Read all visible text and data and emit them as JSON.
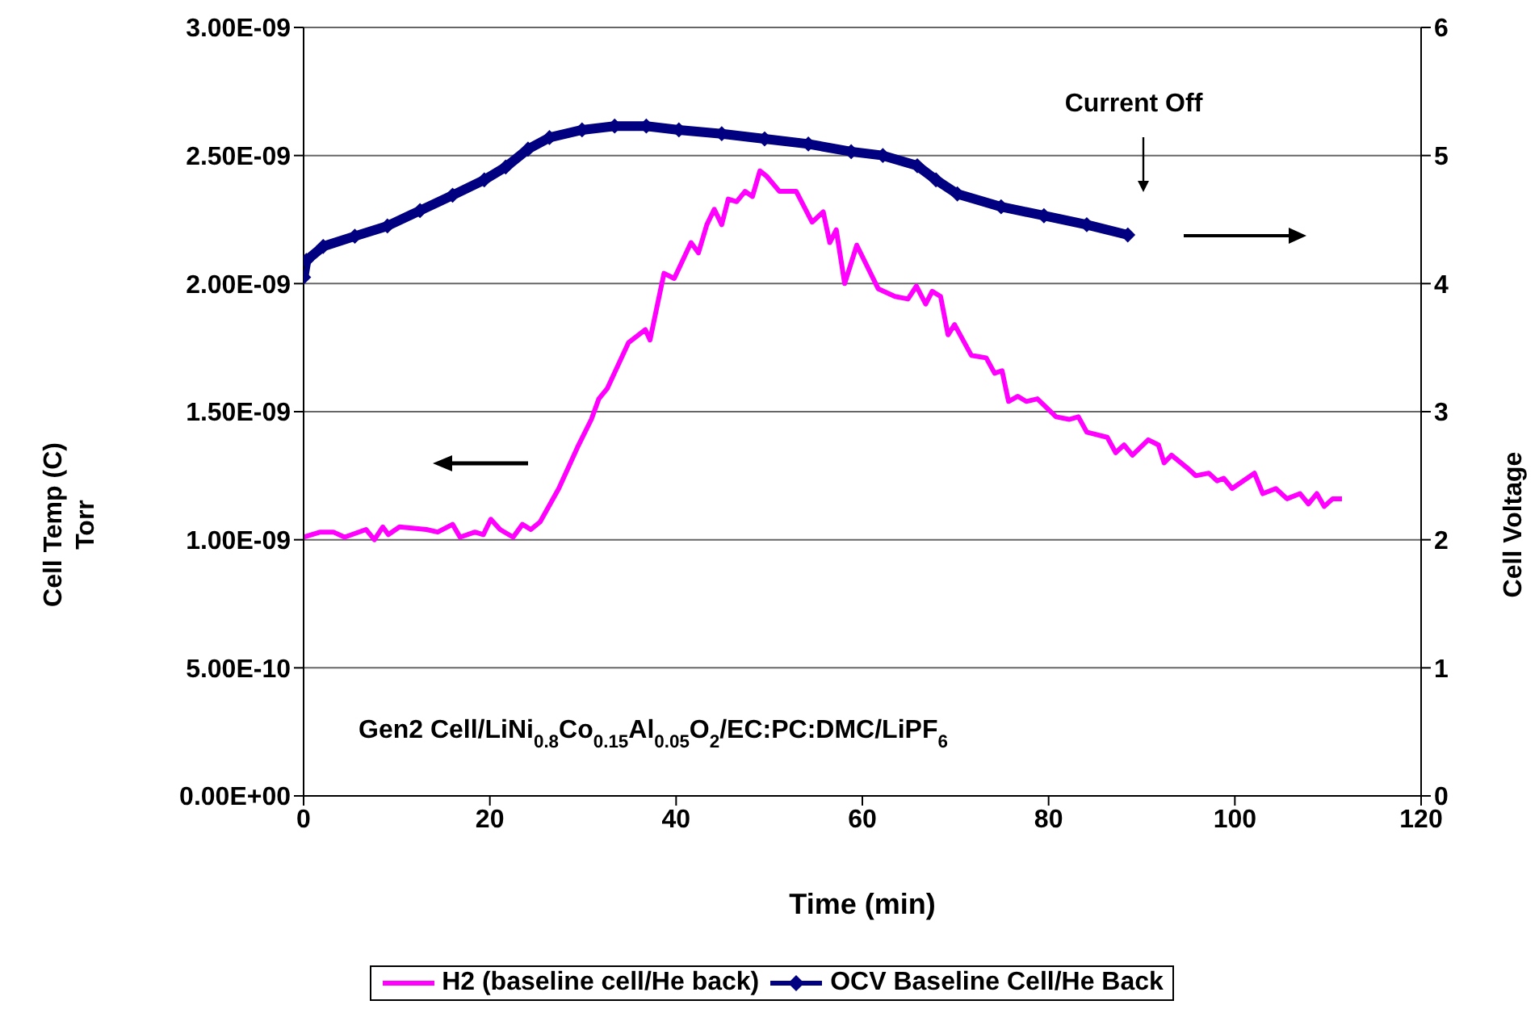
{
  "chart_data": {
    "type": "line",
    "xlabel": "Time (min)",
    "ylabel": "Cell Temp (C)\nTorr",
    "y2label": "Cell Voltage",
    "xlim": [
      0,
      120
    ],
    "xticks": [
      0,
      20,
      40,
      60,
      80,
      100,
      120
    ],
    "ylim": [
      0,
      3e-09
    ],
    "yticks": [
      {
        "value": 0,
        "label": "0.00E+00"
      },
      {
        "value": 5e-10,
        "label": "5.00E-10"
      },
      {
        "value": 1e-09,
        "label": "1.00E-09"
      },
      {
        "value": 1.5e-09,
        "label": "1.50E-09"
      },
      {
        "value": 2e-09,
        "label": "2.00E-09"
      },
      {
        "value": 2.5e-09,
        "label": "2.50E-09"
      },
      {
        "value": 3e-09,
        "label": "3.00E-09"
      }
    ],
    "y2lim": [
      0,
      6
    ],
    "y2ticks": [
      0,
      1,
      2,
      3,
      4,
      5,
      6
    ],
    "grid": "y",
    "legend": "bottom",
    "line_style": "solid",
    "annotations": [
      "Current Off",
      "Gen2 Cell/LiNi$_{0.8}$Co$_{0.15}$Al$_{0.05}$O$_{2}$/EC:PC:DMC/LiPF$_{6}$"
    ],
    "series": [
      {
        "name": "H2 (baseline cell/He back)",
        "color": "#ff00ff",
        "marker": "none",
        "x": [
          0,
          1.8,
          3.2,
          4.4,
          6.7,
          7.6,
          8.5,
          9.1,
          10.3,
          13.2,
          14.4,
          16.0,
          16.8,
          18.4,
          19.3,
          20.1,
          21.1,
          22.5,
          23.5,
          24.4,
          25.4,
          27.4,
          29.4,
          30.9,
          31.7,
          32.6,
          34.9,
          36.7,
          37.2,
          38.7,
          39.8,
          41.6,
          42.4,
          43.3,
          44.1,
          44.9,
          45.6,
          46.5,
          47.4,
          48.2,
          49.0,
          49.7,
          51.1,
          52.9,
          54.6,
          55.8,
          56.5,
          57.2,
          58.1,
          59.4,
          61.7,
          63.5,
          64.9,
          65.8,
          66.8,
          67.5,
          68.4,
          69.2,
          69.9,
          71.7,
          73.3,
          74.2,
          75.0,
          75.7,
          76.7,
          77.6,
          78.8,
          80.8,
          82.2,
          83.2,
          84.1,
          86.3,
          87.2,
          88.1,
          89.0,
          90.7,
          91.8,
          92.4,
          93.2,
          94.9,
          95.8,
          97.2,
          98.1,
          98.8,
          99.7,
          100.9,
          102.1,
          103.0,
          104.4,
          105.6,
          107.0,
          107.9,
          108.8,
          109.6,
          110.5,
          111.5
        ],
        "values": [
          1.01e-09,
          1.03e-09,
          1.03e-09,
          1.01e-09,
          1.04e-09,
          1e-09,
          1.05e-09,
          1.02e-09,
          1.05e-09,
          1.04e-09,
          1.03e-09,
          1.06e-09,
          1.01e-09,
          1.03e-09,
          1.02e-09,
          1.08e-09,
          1.04e-09,
          1.01e-09,
          1.06e-09,
          1.04e-09,
          1.07e-09,
          1.2e-09,
          1.36e-09,
          1.47e-09,
          1.55e-09,
          1.59e-09,
          1.77e-09,
          1.82e-09,
          1.78e-09,
          2.04e-09,
          2.02e-09,
          2.16e-09,
          2.12e-09,
          2.23e-09,
          2.29e-09,
          2.23e-09,
          2.33e-09,
          2.32e-09,
          2.36e-09,
          2.34e-09,
          2.44e-09,
          2.42e-09,
          2.36e-09,
          2.36e-09,
          2.24e-09,
          2.28e-09,
          2.16e-09,
          2.21e-09,
          2e-09,
          2.15e-09,
          1.98e-09,
          1.95e-09,
          1.94e-09,
          1.99e-09,
          1.92e-09,
          1.97e-09,
          1.95e-09,
          1.8e-09,
          1.84e-09,
          1.72e-09,
          1.71e-09,
          1.65e-09,
          1.66e-09,
          1.54e-09,
          1.56e-09,
          1.54e-09,
          1.55e-09,
          1.48e-09,
          1.47e-09,
          1.48e-09,
          1.42e-09,
          1.4e-09,
          1.34e-09,
          1.37e-09,
          1.33e-09,
          1.39e-09,
          1.37e-09,
          1.3e-09,
          1.33e-09,
          1.28e-09,
          1.25e-09,
          1.26e-09,
          1.23e-09,
          1.24e-09,
          1.2e-09,
          1.23e-09,
          1.26e-09,
          1.18e-09,
          1.2e-09,
          1.16e-09,
          1.18e-09,
          1.14e-09,
          1.18e-09,
          1.13e-09,
          1.16e-09,
          1.16e-09
        ]
      },
      {
        "name": "OCV Baseline Cell/He Back",
        "color": "#000080",
        "marker": "diamond",
        "axis": "y2",
        "x": [
          0,
          0.3,
          2.1,
          5.5,
          9,
          12.5,
          16,
          19.4,
          21.7,
          24.1,
          26.4,
          29.9,
          33.4,
          36.8,
          40.3,
          44.9,
          49.5,
          54.2,
          58.8,
          62.2,
          65.9,
          67.9,
          70.2,
          74.9,
          79.5,
          84.1,
          88.5
        ],
        "values": [
          4.05,
          4.18,
          4.29,
          4.37,
          4.45,
          4.57,
          4.69,
          4.81,
          4.91,
          5.05,
          5.14,
          5.2,
          5.23,
          5.23,
          5.2,
          5.17,
          5.13,
          5.09,
          5.03,
          5.0,
          4.92,
          4.81,
          4.7,
          4.6,
          4.53,
          4.46,
          4.38
        ]
      }
    ]
  }
}
